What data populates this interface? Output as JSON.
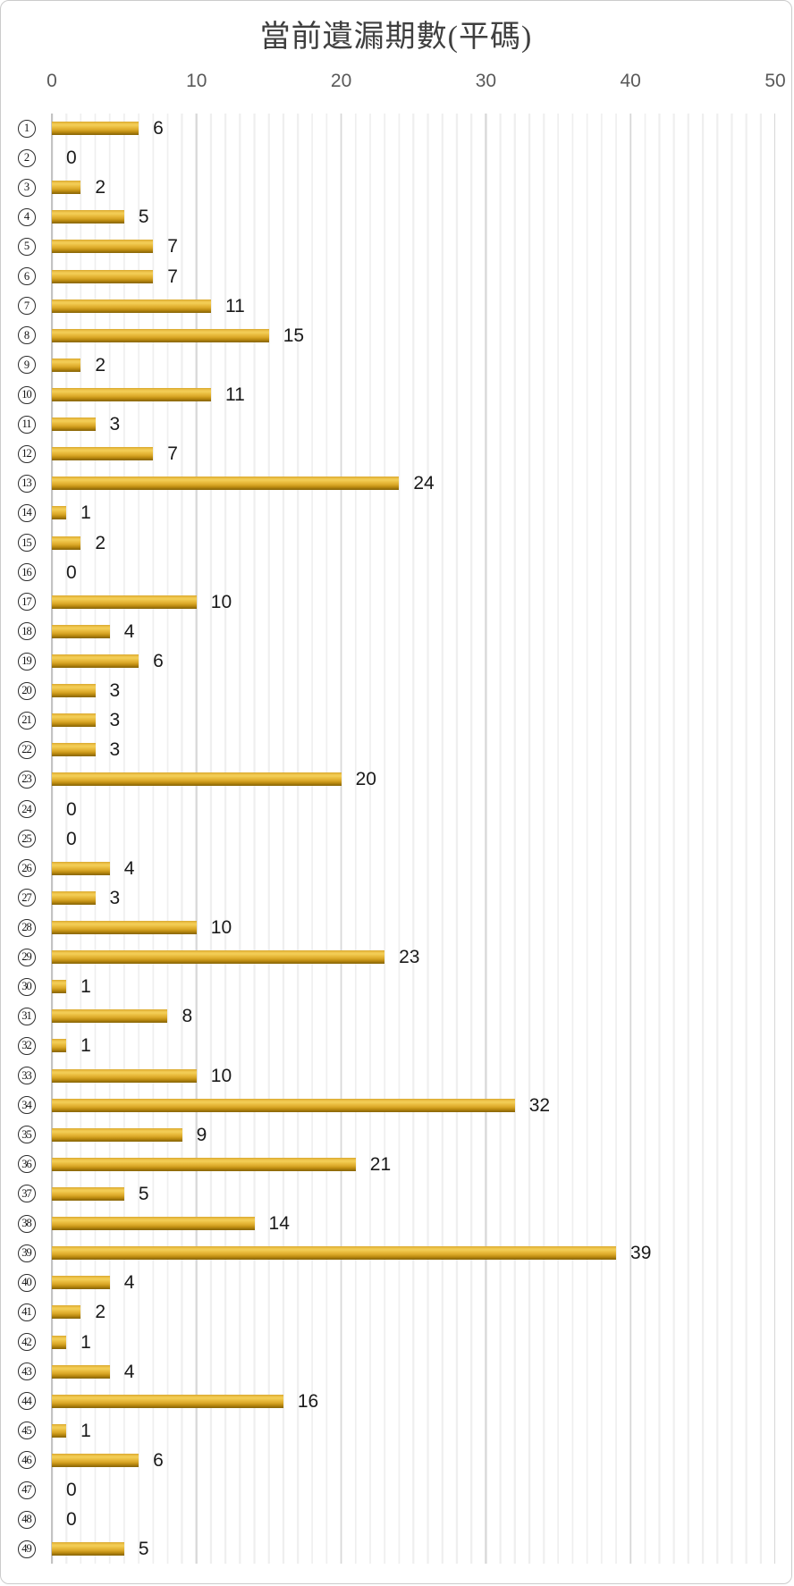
{
  "title": "當前遺漏期數(平碼)",
  "chart_data": {
    "type": "bar",
    "orientation": "horizontal",
    "title": "當前遺漏期數(平碼)",
    "categories": [
      "1",
      "2",
      "3",
      "4",
      "5",
      "6",
      "7",
      "8",
      "9",
      "10",
      "11",
      "12",
      "13",
      "14",
      "15",
      "16",
      "17",
      "18",
      "19",
      "20",
      "21",
      "22",
      "23",
      "24",
      "25",
      "26",
      "27",
      "28",
      "29",
      "30",
      "31",
      "32",
      "33",
      "34",
      "35",
      "36",
      "37",
      "38",
      "39",
      "40",
      "41",
      "42",
      "43",
      "44",
      "45",
      "46",
      "47",
      "48",
      "49"
    ],
    "category_style": "circled-number",
    "values": [
      6,
      0,
      2,
      5,
      7,
      7,
      11,
      15,
      2,
      11,
      3,
      7,
      24,
      1,
      2,
      0,
      10,
      4,
      6,
      3,
      3,
      3,
      20,
      0,
      0,
      4,
      3,
      10,
      23,
      1,
      8,
      1,
      10,
      32,
      9,
      21,
      5,
      14,
      39,
      4,
      2,
      1,
      4,
      16,
      1,
      6,
      0,
      0,
      5
    ],
    "x_ticks": [
      0,
      10,
      20,
      30,
      40,
      50
    ],
    "xlim": [
      0,
      50
    ],
    "grid": "minor-every-1-major-every-10",
    "legend": "none",
    "data_labels": "outside-end",
    "colors": {
      "bar": "#e3b73c",
      "bar_dark_edge": "#8a6606",
      "bar_highlight": "#f3cf58",
      "title_text": "#3f3f3f",
      "axis_text": "#595959",
      "label_text": "#1a1a1a",
      "major_grid": "#d8d8d8",
      "minor_grid": "#efefef",
      "axis_line": "#c3c3c3"
    }
  }
}
